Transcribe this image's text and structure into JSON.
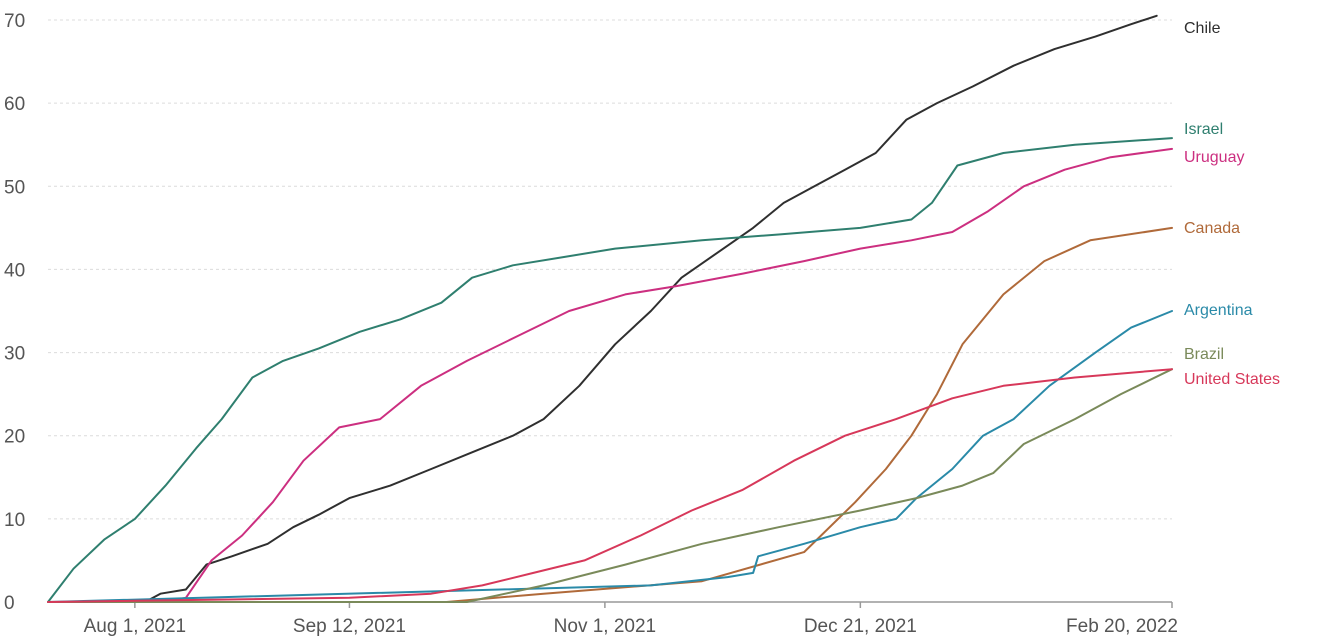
{
  "chart_data": {
    "type": "line",
    "title": "",
    "xlabel": "",
    "ylabel": "",
    "ylim": [
      0,
      70
    ],
    "xlim": [
      "2021-07-15",
      "2022-02-20"
    ],
    "y_ticks": [
      0,
      10,
      20,
      30,
      40,
      50,
      60,
      70
    ],
    "x_ticks": [
      {
        "date": "2021-08-01",
        "label": "Aug 1, 2021"
      },
      {
        "date": "2021-09-12",
        "label": "Sep 12, 2021"
      },
      {
        "date": "2021-11-01",
        "label": "Nov 1, 2021"
      },
      {
        "date": "2021-12-21",
        "label": "Dec 21, 2021"
      },
      {
        "date": "2022-02-20",
        "label": "Feb 20, 2022"
      }
    ],
    "grid": "horizontal dotted",
    "legend": "inline labels at right end of lines",
    "series": [
      {
        "name": "Chile",
        "color": "#2f2f2f",
        "points": [
          [
            "2021-08-03",
            0
          ],
          [
            "2021-08-06",
            1
          ],
          [
            "2021-08-11",
            1.5
          ],
          [
            "2021-08-15",
            4.5
          ],
          [
            "2021-08-20",
            5.5
          ],
          [
            "2021-08-27",
            7
          ],
          [
            "2021-09-01",
            9
          ],
          [
            "2021-09-06",
            10.5
          ],
          [
            "2021-09-12",
            12.5
          ],
          [
            "2021-09-20",
            14
          ],
          [
            "2021-09-28",
            16
          ],
          [
            "2021-10-06",
            18
          ],
          [
            "2021-10-14",
            20
          ],
          [
            "2021-10-20",
            22
          ],
          [
            "2021-10-27",
            26
          ],
          [
            "2021-11-03",
            31
          ],
          [
            "2021-11-10",
            35
          ],
          [
            "2021-11-16",
            39
          ],
          [
            "2021-11-23",
            42
          ],
          [
            "2021-11-30",
            45
          ],
          [
            "2021-12-06",
            48
          ],
          [
            "2021-12-12",
            50
          ],
          [
            "2021-12-18",
            52
          ],
          [
            "2021-12-24",
            54
          ],
          [
            "2021-12-30",
            58
          ],
          [
            "2022-01-05",
            60
          ],
          [
            "2022-01-12",
            62
          ],
          [
            "2022-01-20",
            64.5
          ],
          [
            "2022-01-28",
            66.5
          ],
          [
            "2022-02-05",
            68
          ],
          [
            "2022-02-12",
            69.5
          ],
          [
            "2022-02-17",
            70.5
          ]
        ]
      },
      {
        "name": "Israel",
        "color": "#2f7f6f",
        "points": [
          [
            "2021-07-15",
            0
          ],
          [
            "2021-07-20",
            4
          ],
          [
            "2021-07-26",
            7.5
          ],
          [
            "2021-08-01",
            10
          ],
          [
            "2021-08-07",
            14
          ],
          [
            "2021-08-13",
            18.5
          ],
          [
            "2021-08-18",
            22
          ],
          [
            "2021-08-24",
            27
          ],
          [
            "2021-08-30",
            29
          ],
          [
            "2021-09-06",
            30.5
          ],
          [
            "2021-09-14",
            32.5
          ],
          [
            "2021-09-22",
            34
          ],
          [
            "2021-09-30",
            36
          ],
          [
            "2021-10-06",
            39
          ],
          [
            "2021-10-14",
            40.5
          ],
          [
            "2021-10-24",
            41.5
          ],
          [
            "2021-11-03",
            42.5
          ],
          [
            "2021-11-20",
            43.5
          ],
          [
            "2021-12-05",
            44.2
          ],
          [
            "2021-12-21",
            45
          ],
          [
            "2021-12-31",
            46
          ],
          [
            "2022-01-04",
            48
          ],
          [
            "2022-01-09",
            52.5
          ],
          [
            "2022-01-18",
            54
          ],
          [
            "2022-02-01",
            55
          ],
          [
            "2022-02-20",
            55.8
          ]
        ]
      },
      {
        "name": "Uruguay",
        "color": "#cc2f80",
        "points": [
          [
            "2021-08-06",
            0
          ],
          [
            "2021-08-11",
            0.5
          ],
          [
            "2021-08-16",
            5
          ],
          [
            "2021-08-22",
            8
          ],
          [
            "2021-08-28",
            12
          ],
          [
            "2021-09-03",
            17
          ],
          [
            "2021-09-10",
            21
          ],
          [
            "2021-09-18",
            22
          ],
          [
            "2021-09-26",
            26
          ],
          [
            "2021-10-05",
            29
          ],
          [
            "2021-10-15",
            32
          ],
          [
            "2021-10-25",
            35
          ],
          [
            "2021-11-05",
            37
          ],
          [
            "2021-11-15",
            38
          ],
          [
            "2021-11-28",
            39.5
          ],
          [
            "2021-12-10",
            41
          ],
          [
            "2021-12-21",
            42.5
          ],
          [
            "2021-12-31",
            43.5
          ],
          [
            "2022-01-08",
            44.5
          ],
          [
            "2022-01-15",
            47
          ],
          [
            "2022-01-22",
            50
          ],
          [
            "2022-01-30",
            52
          ],
          [
            "2022-02-08",
            53.5
          ],
          [
            "2022-02-20",
            54.5
          ]
        ]
      },
      {
        "name": "Canada",
        "color": "#b06a3a",
        "points": [
          [
            "2021-07-15",
            0
          ],
          [
            "2021-10-01",
            0
          ],
          [
            "2021-10-20",
            1
          ],
          [
            "2021-11-20",
            2.5
          ],
          [
            "2021-12-10",
            6
          ],
          [
            "2021-12-20",
            12
          ],
          [
            "2021-12-26",
            16
          ],
          [
            "2021-12-31",
            20
          ],
          [
            "2022-01-05",
            25
          ],
          [
            "2022-01-10",
            31
          ],
          [
            "2022-01-18",
            37
          ],
          [
            "2022-01-26",
            41
          ],
          [
            "2022-02-04",
            43.5
          ],
          [
            "2022-02-20",
            45
          ]
        ]
      },
      {
        "name": "Argentina",
        "color": "#2a8aa8",
        "points": [
          [
            "2021-07-15",
            0
          ],
          [
            "2021-11-10",
            2
          ],
          [
            "2021-11-25",
            3
          ],
          [
            "2021-11-30",
            3.5
          ],
          [
            "2021-12-01",
            5.5
          ],
          [
            "2021-12-10",
            7
          ],
          [
            "2021-12-21",
            9
          ],
          [
            "2021-12-28",
            10
          ],
          [
            "2022-01-01",
            12.5
          ],
          [
            "2022-01-08",
            16
          ],
          [
            "2022-01-14",
            20
          ],
          [
            "2022-01-20",
            22
          ],
          [
            "2022-01-27",
            26
          ],
          [
            "2022-02-05",
            30
          ],
          [
            "2022-02-12",
            33
          ],
          [
            "2022-02-20",
            35
          ]
        ]
      },
      {
        "name": "Brazil",
        "color": "#7a8a5a",
        "points": [
          [
            "2021-07-15",
            0
          ],
          [
            "2021-10-05",
            0
          ],
          [
            "2021-10-20",
            2
          ],
          [
            "2021-11-05",
            4.5
          ],
          [
            "2021-11-20",
            7
          ],
          [
            "2021-12-05",
            9
          ],
          [
            "2021-12-21",
            11
          ],
          [
            "2022-01-01",
            12.5
          ],
          [
            "2022-01-10",
            14
          ],
          [
            "2022-01-16",
            15.5
          ],
          [
            "2022-01-22",
            19
          ],
          [
            "2022-02-01",
            22
          ],
          [
            "2022-02-10",
            25
          ],
          [
            "2022-02-20",
            28
          ]
        ]
      },
      {
        "name": "United States",
        "color": "#d7385a",
        "points": [
          [
            "2021-07-15",
            0
          ],
          [
            "2021-09-12",
            0.5
          ],
          [
            "2021-09-28",
            1
          ],
          [
            "2021-10-08",
            2
          ],
          [
            "2021-10-18",
            3.5
          ],
          [
            "2021-10-28",
            5
          ],
          [
            "2021-11-08",
            8
          ],
          [
            "2021-11-18",
            11
          ],
          [
            "2021-11-28",
            13.5
          ],
          [
            "2021-12-08",
            17
          ],
          [
            "2021-12-18",
            20
          ],
          [
            "2021-12-28",
            22
          ],
          [
            "2022-01-08",
            24.5
          ],
          [
            "2022-01-18",
            26
          ],
          [
            "2022-02-01",
            27
          ],
          [
            "2022-02-20",
            28
          ]
        ]
      }
    ]
  }
}
